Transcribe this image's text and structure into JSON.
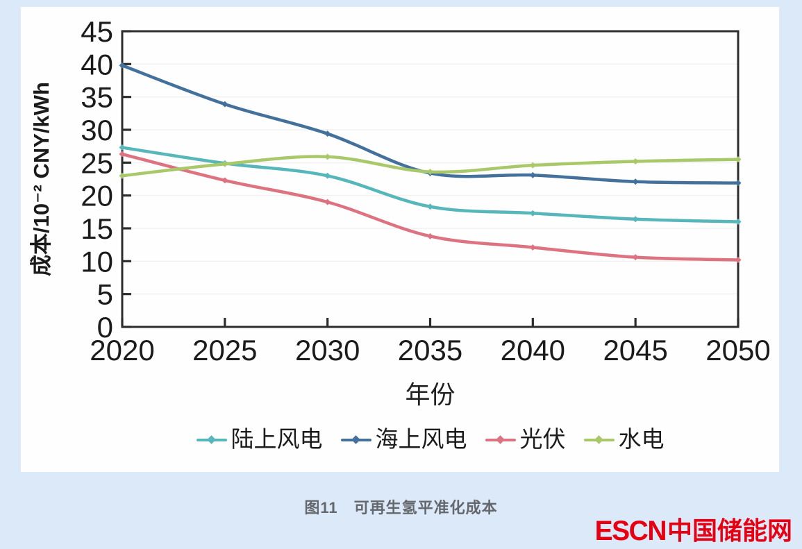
{
  "figure": {
    "caption": "图11　可再生氢平准化成本",
    "watermark": {
      "latin": "ESCN",
      "chinese": "中国储能网"
    }
  },
  "colors": {
    "page_background": "#dbe9f8",
    "panel_background": "#fefefe",
    "axis": "#2d2d2d",
    "tick_label": "#1b1b1b",
    "gridline": "rgba(0,0,0,0.05)",
    "caption_text": "#64676b",
    "watermark_red": "#e60012"
  },
  "chart_data": {
    "type": "line",
    "title": "",
    "xlabel": "年份",
    "ylabel": "成本/10⁻² CNY/kWh",
    "x": [
      2020,
      2025,
      2030,
      2035,
      2040,
      2045,
      2050
    ],
    "xlim": [
      2020,
      2050
    ],
    "ylim": [
      0,
      45
    ],
    "xticks": [
      2020,
      2025,
      2030,
      2035,
      2040,
      2045,
      2050
    ],
    "yticks": [
      0,
      5,
      10,
      15,
      20,
      25,
      30,
      35,
      40,
      45
    ],
    "grid": "very-faint-horizontal",
    "legend_position": "bottom",
    "marker": "diamond",
    "series": [
      {
        "key": "onshore-wind",
        "name": "陆上风电",
        "color": "#56b6ba",
        "values": [
          27.3,
          24.9,
          23.0,
          18.3,
          17.3,
          16.4,
          16.0
        ]
      },
      {
        "key": "offshore-wind",
        "name": "海上风电",
        "color": "#44719c",
        "values": [
          39.8,
          33.9,
          29.4,
          23.4,
          23.1,
          22.1,
          21.9
        ]
      },
      {
        "key": "pv",
        "name": "光伏",
        "color": "#dd7380",
        "values": [
          26.3,
          22.3,
          19.0,
          13.8,
          12.1,
          10.6,
          10.2
        ]
      },
      {
        "key": "hydro",
        "name": "水电",
        "color": "#a9c86a",
        "values": [
          23.0,
          24.8,
          25.9,
          23.6,
          24.6,
          25.2,
          25.5
        ]
      }
    ]
  }
}
